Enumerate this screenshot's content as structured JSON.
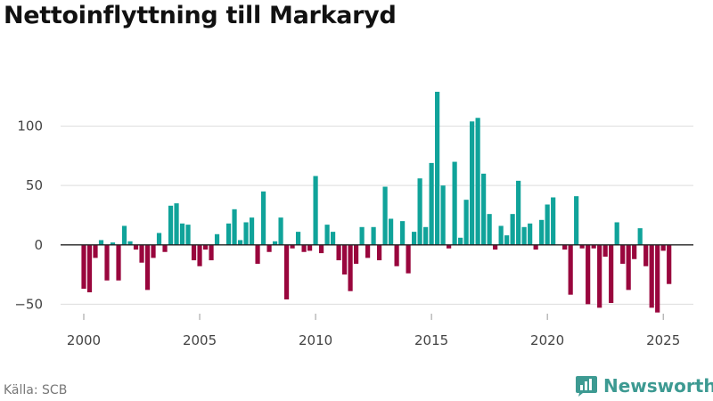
{
  "chart_data": {
    "type": "bar",
    "title": "Nettoinflyttning till Markaryd",
    "xlabel": "",
    "ylabel": "",
    "ylim": [
      -58,
      135
    ],
    "xlim": [
      1999.0,
      2026.3
    ],
    "yticks": [
      -50,
      0,
      50,
      100
    ],
    "xticks": [
      2000,
      2005,
      2010,
      2015,
      2020,
      2025
    ],
    "colors": {
      "positive": "#10a39a",
      "negative": "#99063d"
    },
    "series": [
      {
        "name": "Nettoinflyttning",
        "points": [
          {
            "x": 2000.0,
            "y": -37
          },
          {
            "x": 2000.25,
            "y": -40
          },
          {
            "x": 2000.5,
            "y": -11
          },
          {
            "x": 2000.75,
            "y": 4
          },
          {
            "x": 2001.0,
            "y": -30
          },
          {
            "x": 2001.25,
            "y": 2
          },
          {
            "x": 2001.5,
            "y": -30
          },
          {
            "x": 2001.75,
            "y": 16
          },
          {
            "x": 2002.0,
            "y": 3
          },
          {
            "x": 2002.25,
            "y": -4
          },
          {
            "x": 2002.5,
            "y": -15
          },
          {
            "x": 2002.75,
            "y": -38
          },
          {
            "x": 2003.0,
            "y": -11
          },
          {
            "x": 2003.25,
            "y": 10
          },
          {
            "x": 2003.5,
            "y": -6
          },
          {
            "x": 2003.75,
            "y": 33
          },
          {
            "x": 2004.0,
            "y": 35
          },
          {
            "x": 2004.25,
            "y": 18
          },
          {
            "x": 2004.5,
            "y": 17
          },
          {
            "x": 2004.75,
            "y": -13
          },
          {
            "x": 2005.0,
            "y": -18
          },
          {
            "x": 2005.25,
            "y": -4
          },
          {
            "x": 2005.5,
            "y": -13
          },
          {
            "x": 2005.75,
            "y": 9
          },
          {
            "x": 2006.0,
            "y": 0
          },
          {
            "x": 2006.25,
            "y": 18
          },
          {
            "x": 2006.5,
            "y": 30
          },
          {
            "x": 2006.75,
            "y": 4
          },
          {
            "x": 2007.0,
            "y": 19
          },
          {
            "x": 2007.25,
            "y": 23
          },
          {
            "x": 2007.5,
            "y": -16
          },
          {
            "x": 2007.75,
            "y": 45
          },
          {
            "x": 2008.0,
            "y": -6
          },
          {
            "x": 2008.25,
            "y": 3
          },
          {
            "x": 2008.5,
            "y": 23
          },
          {
            "x": 2008.75,
            "y": -46
          },
          {
            "x": 2009.0,
            "y": -3
          },
          {
            "x": 2009.25,
            "y": 11
          },
          {
            "x": 2009.5,
            "y": -6
          },
          {
            "x": 2009.75,
            "y": -5
          },
          {
            "x": 2010.0,
            "y": 58
          },
          {
            "x": 2010.25,
            "y": -7
          },
          {
            "x": 2010.5,
            "y": 17
          },
          {
            "x": 2010.75,
            "y": 11
          },
          {
            "x": 2011.0,
            "y": -13
          },
          {
            "x": 2011.25,
            "y": -25
          },
          {
            "x": 2011.5,
            "y": -39
          },
          {
            "x": 2011.75,
            "y": -16
          },
          {
            "x": 2012.0,
            "y": 15
          },
          {
            "x": 2012.25,
            "y": -11
          },
          {
            "x": 2012.5,
            "y": 15
          },
          {
            "x": 2012.75,
            "y": -13
          },
          {
            "x": 2013.0,
            "y": 49
          },
          {
            "x": 2013.25,
            "y": 22
          },
          {
            "x": 2013.5,
            "y": -18
          },
          {
            "x": 2013.75,
            "y": 20
          },
          {
            "x": 2014.0,
            "y": -24
          },
          {
            "x": 2014.25,
            "y": 11
          },
          {
            "x": 2014.5,
            "y": 56
          },
          {
            "x": 2014.75,
            "y": 15
          },
          {
            "x": 2015.0,
            "y": 69
          },
          {
            "x": 2015.25,
            "y": 129
          },
          {
            "x": 2015.5,
            "y": 50
          },
          {
            "x": 2015.75,
            "y": -3
          },
          {
            "x": 2016.0,
            "y": 70
          },
          {
            "x": 2016.25,
            "y": 6
          },
          {
            "x": 2016.5,
            "y": 38
          },
          {
            "x": 2016.75,
            "y": 104
          },
          {
            "x": 2017.0,
            "y": 107
          },
          {
            "x": 2017.25,
            "y": 60
          },
          {
            "x": 2017.5,
            "y": 26
          },
          {
            "x": 2017.75,
            "y": -4
          },
          {
            "x": 2018.0,
            "y": 16
          },
          {
            "x": 2018.25,
            "y": 8
          },
          {
            "x": 2018.5,
            "y": 26
          },
          {
            "x": 2018.75,
            "y": 54
          },
          {
            "x": 2019.0,
            "y": 15
          },
          {
            "x": 2019.25,
            "y": 18
          },
          {
            "x": 2019.5,
            "y": -4
          },
          {
            "x": 2019.75,
            "y": 21
          },
          {
            "x": 2020.0,
            "y": 34
          },
          {
            "x": 2020.25,
            "y": 40
          },
          {
            "x": 2020.5,
            "y": 0
          },
          {
            "x": 2020.75,
            "y": -4
          },
          {
            "x": 2021.0,
            "y": -42
          },
          {
            "x": 2021.25,
            "y": 41
          },
          {
            "x": 2021.5,
            "y": -3
          },
          {
            "x": 2021.75,
            "y": -50
          },
          {
            "x": 2022.0,
            "y": -3
          },
          {
            "x": 2022.25,
            "y": -53
          },
          {
            "x": 2022.5,
            "y": -10
          },
          {
            "x": 2022.75,
            "y": -49
          },
          {
            "x": 2023.0,
            "y": 19
          },
          {
            "x": 2023.25,
            "y": -16
          },
          {
            "x": 2023.5,
            "y": -38
          },
          {
            "x": 2023.75,
            "y": -12
          },
          {
            "x": 2024.0,
            "y": 14
          },
          {
            "x": 2024.25,
            "y": -18
          },
          {
            "x": 2024.5,
            "y": -53
          },
          {
            "x": 2024.75,
            "y": -57
          },
          {
            "x": 2025.0,
            "y": -5
          },
          {
            "x": 2025.25,
            "y": -33
          }
        ]
      }
    ]
  },
  "footer": {
    "source": "Källa: SCB",
    "brand": "Newsworthy"
  }
}
